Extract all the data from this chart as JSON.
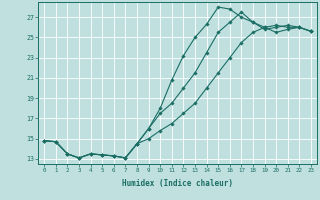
{
  "xlabel": "Humidex (Indice chaleur)",
  "bg_color": "#c0e0e0",
  "line_color": "#1a6e64",
  "grid_color": "#ffffff",
  "xlim": [
    -0.5,
    23.5
  ],
  "ylim": [
    12.5,
    28.5
  ],
  "xticks": [
    0,
    1,
    2,
    3,
    4,
    5,
    6,
    7,
    8,
    9,
    10,
    11,
    12,
    13,
    14,
    15,
    16,
    17,
    18,
    19,
    20,
    21,
    22,
    23
  ],
  "yticks": [
    13,
    15,
    17,
    19,
    21,
    23,
    25,
    27
  ],
  "series": [
    [
      14.8,
      14.7,
      13.5,
      13.1,
      13.5,
      13.4,
      13.3,
      13.1,
      14.5,
      16.0,
      18.0,
      20.8,
      23.2,
      25.0,
      26.3,
      28.0,
      27.8,
      27.0,
      26.5,
      25.8,
      26.0,
      26.2,
      26.0,
      25.6
    ],
    [
      14.8,
      14.7,
      13.5,
      13.1,
      13.5,
      13.4,
      13.3,
      13.1,
      14.5,
      16.0,
      17.5,
      18.5,
      20.0,
      21.5,
      23.5,
      25.5,
      26.5,
      27.5,
      26.5,
      26.0,
      25.5,
      25.8,
      26.0,
      25.6
    ],
    [
      14.8,
      14.7,
      13.5,
      13.1,
      13.5,
      13.4,
      13.3,
      13.1,
      14.5,
      15.0,
      15.8,
      16.5,
      17.5,
      18.5,
      20.0,
      21.5,
      23.0,
      24.5,
      25.5,
      26.0,
      26.2,
      26.0,
      26.0,
      25.6
    ]
  ]
}
